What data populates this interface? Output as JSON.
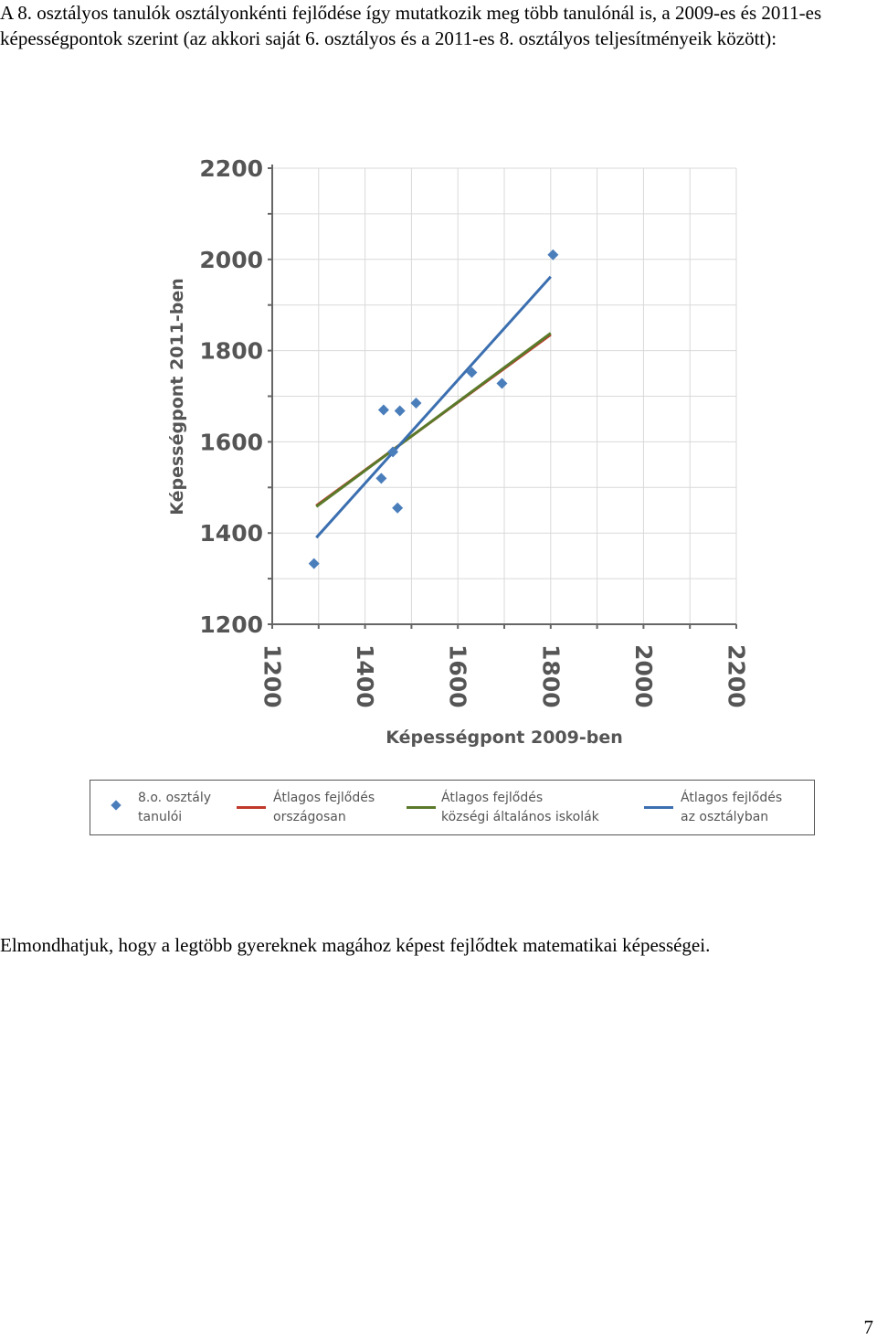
{
  "intro": "A 8. osztályos tanulók osztályonkénti fejlődése így mutatkozik meg több tanulónál is, a 2009-es és 2011-es képességpontok szerint (az akkori saját 6. osztályos és a 2011-es 8. osztályos teljesítményeik között):",
  "chart_data": {
    "type": "scatter",
    "xlabel": "Képességpont 2009-ben",
    "ylabel": "Képességpont 2011-ben",
    "xlim": [
      1200,
      2200
    ],
    "ylim": [
      1200,
      2200
    ],
    "x_ticks": [
      "1200",
      "1400",
      "1600",
      "1800",
      "2000",
      "2200"
    ],
    "y_ticks": [
      "1200",
      "1400",
      "1600",
      "1800",
      "2000",
      "2200"
    ],
    "grid": true,
    "series": [
      {
        "name": "8.o. osztály tanulói",
        "kind": "points",
        "color": "#4a7ebb",
        "points": [
          [
            1290,
            1333
          ],
          [
            1435,
            1520
          ],
          [
            1440,
            1670
          ],
          [
            1460,
            1578
          ],
          [
            1470,
            1455
          ],
          [
            1475,
            1668
          ],
          [
            1510,
            1685
          ],
          [
            1630,
            1752
          ],
          [
            1695,
            1728
          ],
          [
            1805,
            2010
          ]
        ]
      },
      {
        "name": "Átlagos fejlődés országosan",
        "kind": "line",
        "color": "#c0392b",
        "points": [
          [
            1295,
            1460
          ],
          [
            1800,
            1835
          ]
        ]
      },
      {
        "name": "Átlagos fejlődés községi általános iskolák",
        "kind": "line",
        "color": "#5a7a2a",
        "points": [
          [
            1295,
            1458
          ],
          [
            1800,
            1838
          ]
        ]
      },
      {
        "name": "Átlagos fejlődés az osztályban",
        "kind": "line",
        "color": "#3b6fb0",
        "points": [
          [
            1295,
            1390
          ],
          [
            1800,
            1962
          ]
        ]
      }
    ]
  },
  "legend": [
    {
      "line1": "8.o. osztály",
      "line2": "tanulói",
      "marker": "diamond",
      "color": "#4a7ebb"
    },
    {
      "line1": "Átlagos fejlődés",
      "line2": "országosan",
      "marker": "line",
      "color": "#c0392b"
    },
    {
      "line1": "Átlagos fejlődés",
      "line2": "községi általános iskolák",
      "marker": "line",
      "color": "#5a7a2a"
    },
    {
      "line1": "Átlagos fejlődés",
      "line2": "az osztályban",
      "marker": "line",
      "color": "#3b6fb0"
    }
  ],
  "conclusion": "Elmondhatjuk, hogy a legtöbb gyereknek magához képest fejlődtek matematikai képességei.",
  "page_number": "7"
}
